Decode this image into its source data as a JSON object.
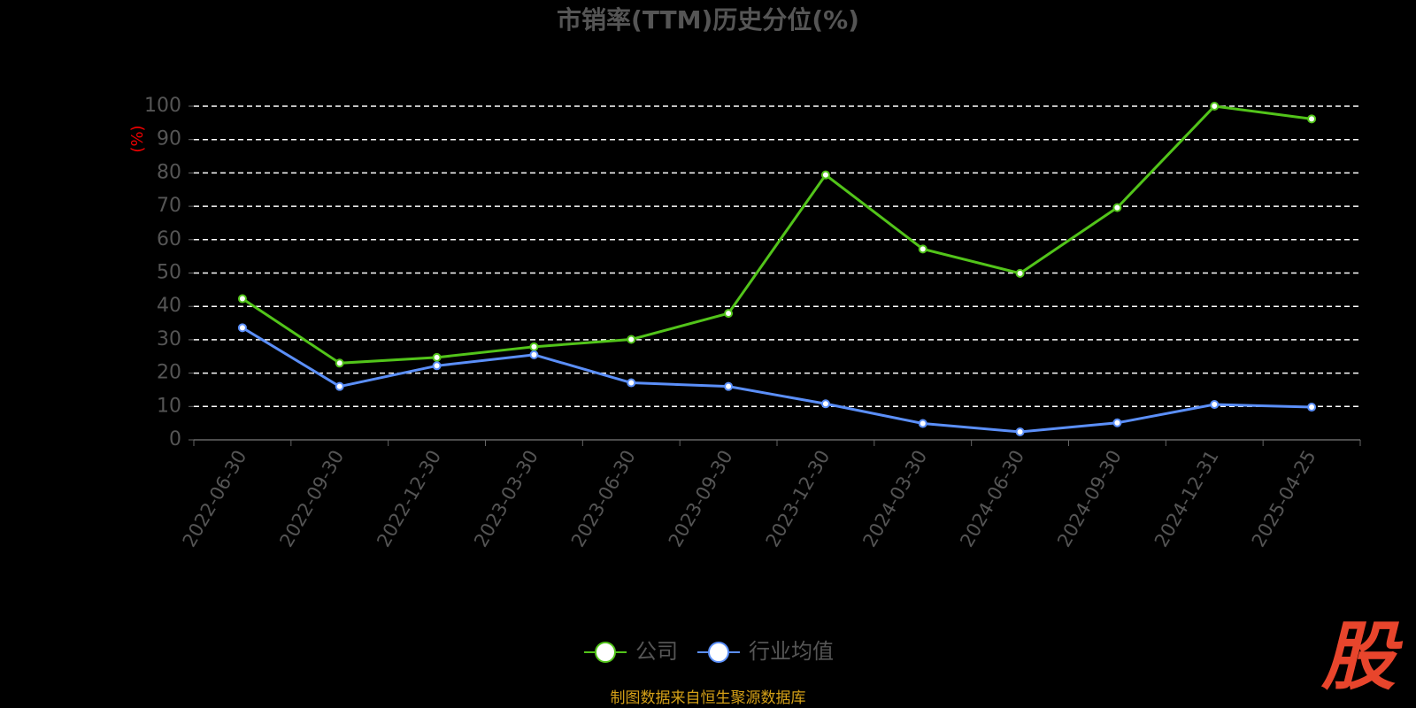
{
  "chart_data": {
    "type": "line",
    "title": "市销率(TTM)历史分位(%)",
    "y_label": "(%)",
    "categories": [
      "2022-06-30",
      "2022-09-30",
      "2022-12-30",
      "2023-03-30",
      "2023-06-30",
      "2023-09-30",
      "2023-12-30",
      "2024-03-30",
      "2024-06-30",
      "2024-09-30",
      "2024-12-31",
      "2025-04-25"
    ],
    "series": [
      {
        "name": "公司",
        "color": "#52c41a",
        "values": [
          42.3,
          23.0,
          24.7,
          27.9,
          30.1,
          37.9,
          79.4,
          57.2,
          49.9,
          69.6,
          100,
          96.2
        ]
      },
      {
        "name": "行业均值",
        "color": "#5b8ff9",
        "values": [
          33.6,
          16.0,
          22.2,
          25.5,
          17.1,
          16.0,
          10.8,
          4.9,
          2.4,
          5.1,
          10.6,
          9.8
        ]
      }
    ],
    "ylim": [
      0,
      100
    ],
    "yticks": [
      0,
      10,
      20,
      30,
      40,
      50,
      60,
      70,
      80,
      90,
      100
    ],
    "grid": true,
    "legend": "bottom",
    "source": "制图数据来自恒生聚源数据库",
    "logo": "股"
  }
}
